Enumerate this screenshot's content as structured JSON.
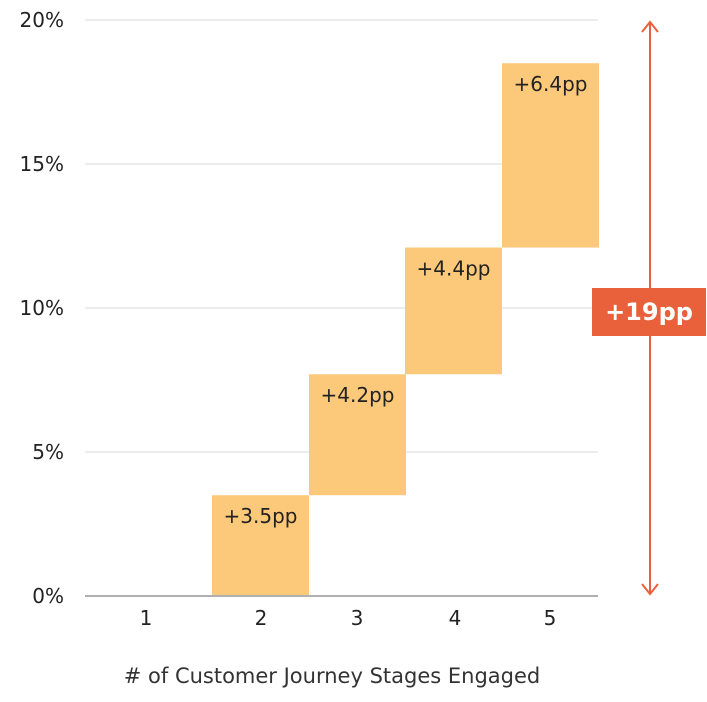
{
  "chart_data": {
    "type": "bar",
    "subtype": "waterfall",
    "title": "",
    "xlabel": "# of Customer Journey Stages Engaged",
    "ylabel": "",
    "ylim": [
      0,
      20
    ],
    "yticks": [
      "0%",
      "5%",
      "10%",
      "15%",
      "20%"
    ],
    "grid": true,
    "categories": [
      "1",
      "2",
      "3",
      "4",
      "5"
    ],
    "steps": [
      {
        "category": "2",
        "start": 0,
        "end": 3.5,
        "label": "+3.5pp"
      },
      {
        "category": "3",
        "start": 3.5,
        "end": 7.7,
        "label": "+4.2pp"
      },
      {
        "category": "4",
        "start": 7.7,
        "end": 12.1,
        "label": "+4.4pp"
      },
      {
        "category": "5",
        "start": 12.1,
        "end": 18.5,
        "label": "+6.4pp"
      }
    ],
    "total": {
      "label": "+19pp",
      "range": [
        0,
        20
      ]
    },
    "colors": {
      "bar": "#fcc97a",
      "accent": "#e8613a",
      "grid": "#d9d9d9",
      "axis": "#b0b0b0"
    }
  }
}
